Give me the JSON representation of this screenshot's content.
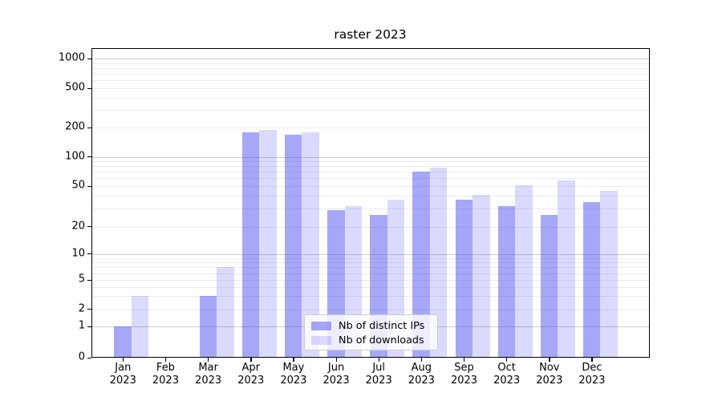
{
  "figure": {
    "title": "raster 2023"
  },
  "legend": {
    "items": [
      {
        "label": "Nb of distinct IPs"
      },
      {
        "label": "Nb of downloads"
      }
    ]
  },
  "chart_data": {
    "type": "bar",
    "title": "raster 2023",
    "categories": [
      "Jan",
      "Feb",
      "Mar",
      "Apr",
      "May",
      "Jun",
      "Jul",
      "Aug",
      "Sep",
      "Oct",
      "Nov",
      "Dec"
    ],
    "category_year": "2023",
    "series": [
      {
        "name": "Nb of distinct IPs",
        "color": "rgba(80,80,240,0.5)",
        "values": [
          1,
          0,
          3,
          180,
          168,
          29,
          26,
          70,
          37,
          32,
          26,
          35
        ]
      },
      {
        "name": "Nb of downloads",
        "color": "rgba(80,80,240,0.21)",
        "values": [
          3,
          0,
          7,
          190,
          180,
          32,
          37,
          78,
          41,
          51,
          57,
          45
        ]
      }
    ],
    "yscale": "symlog",
    "yticks": [
      0,
      1,
      2,
      5,
      10,
      20,
      50,
      100,
      200,
      500,
      1000
    ],
    "ylim": [
      0,
      1300
    ],
    "grid": "horizontal, log minor gridlines",
    "legend_position": "lower center inside plot",
    "colors": {
      "bar_distinct_ips_solid": "#a8a8f7",
      "bar_downloads_solid": "#d9d9fa",
      "grid_major": "#cbcbcb",
      "grid_minor": "#ebebeb",
      "spine": "#000000",
      "legend_border": "#cccccc"
    }
  }
}
